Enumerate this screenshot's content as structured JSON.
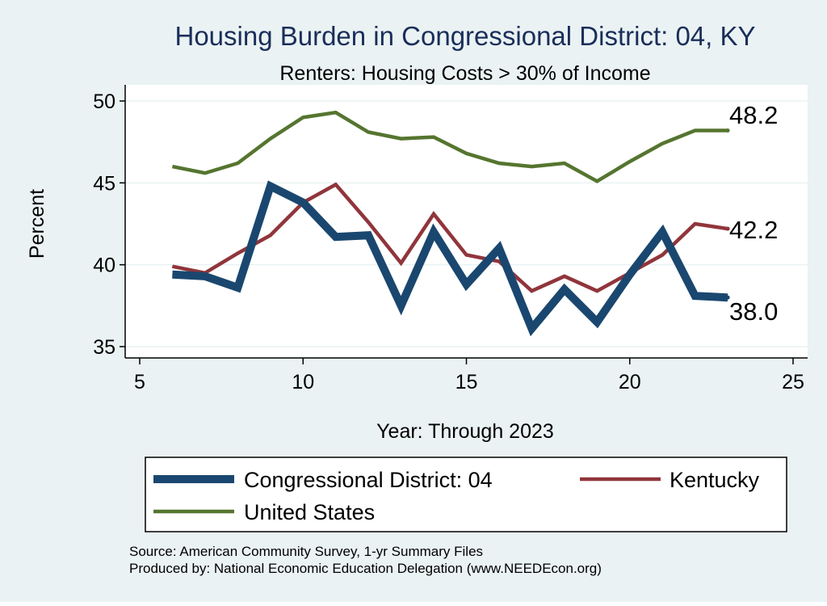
{
  "chart_data": {
    "type": "line",
    "title": "Housing Burden in Congressional District:  04, KY",
    "subtitle": "Renters: Housing Costs > 30% of Income",
    "xlabel": "Year: Through 2023",
    "ylabel": "Percent",
    "xlim": [
      5,
      25
    ],
    "ylim": [
      35,
      50
    ],
    "xticks": [
      "5",
      "10",
      "15",
      "20",
      "25"
    ],
    "yticks": [
      "35",
      "40",
      "45",
      "50"
    ],
    "grid": true,
    "legend_position": "bottom",
    "x": [
      6,
      7,
      8,
      9,
      10,
      11,
      12,
      13,
      14,
      15,
      16,
      17,
      18,
      19,
      20,
      21,
      22,
      23
    ],
    "series": [
      {
        "name": "Congressional District:  04",
        "color": "#1a476f",
        "values": [
          39.4,
          39.3,
          38.6,
          44.8,
          43.8,
          41.7,
          41.8,
          37.5,
          42.0,
          38.8,
          41.0,
          36.1,
          38.5,
          36.5,
          39.4,
          42.0,
          38.1,
          38.0
        ],
        "end_label": "38.0"
      },
      {
        "name": "Kentucky",
        "color": "#90353b",
        "values": [
          39.9,
          39.5,
          40.7,
          41.8,
          43.8,
          44.9,
          42.6,
          40.1,
          43.1,
          40.6,
          40.2,
          38.4,
          39.3,
          38.4,
          39.5,
          40.6,
          42.5,
          42.2
        ],
        "end_label": "42.2"
      },
      {
        "name": "United States",
        "color": "#55752f",
        "values": [
          46.0,
          45.6,
          46.2,
          47.7,
          49.0,
          49.3,
          48.1,
          47.7,
          47.8,
          46.8,
          46.2,
          46.0,
          46.2,
          45.1,
          46.3,
          47.4,
          48.2,
          48.2
        ],
        "end_label": "48.2"
      }
    ],
    "source_lines": [
      "Source: American Community Survey, 1-yr Summary Files",
      "Produced by: National Economic Education Delegation (www.NEEDEcon.org)"
    ]
  },
  "colors": {
    "background": "#eaf2f3",
    "plot_background": "#ffffff",
    "title": "#1a2e5a",
    "grid": "#eaf2f3"
  }
}
